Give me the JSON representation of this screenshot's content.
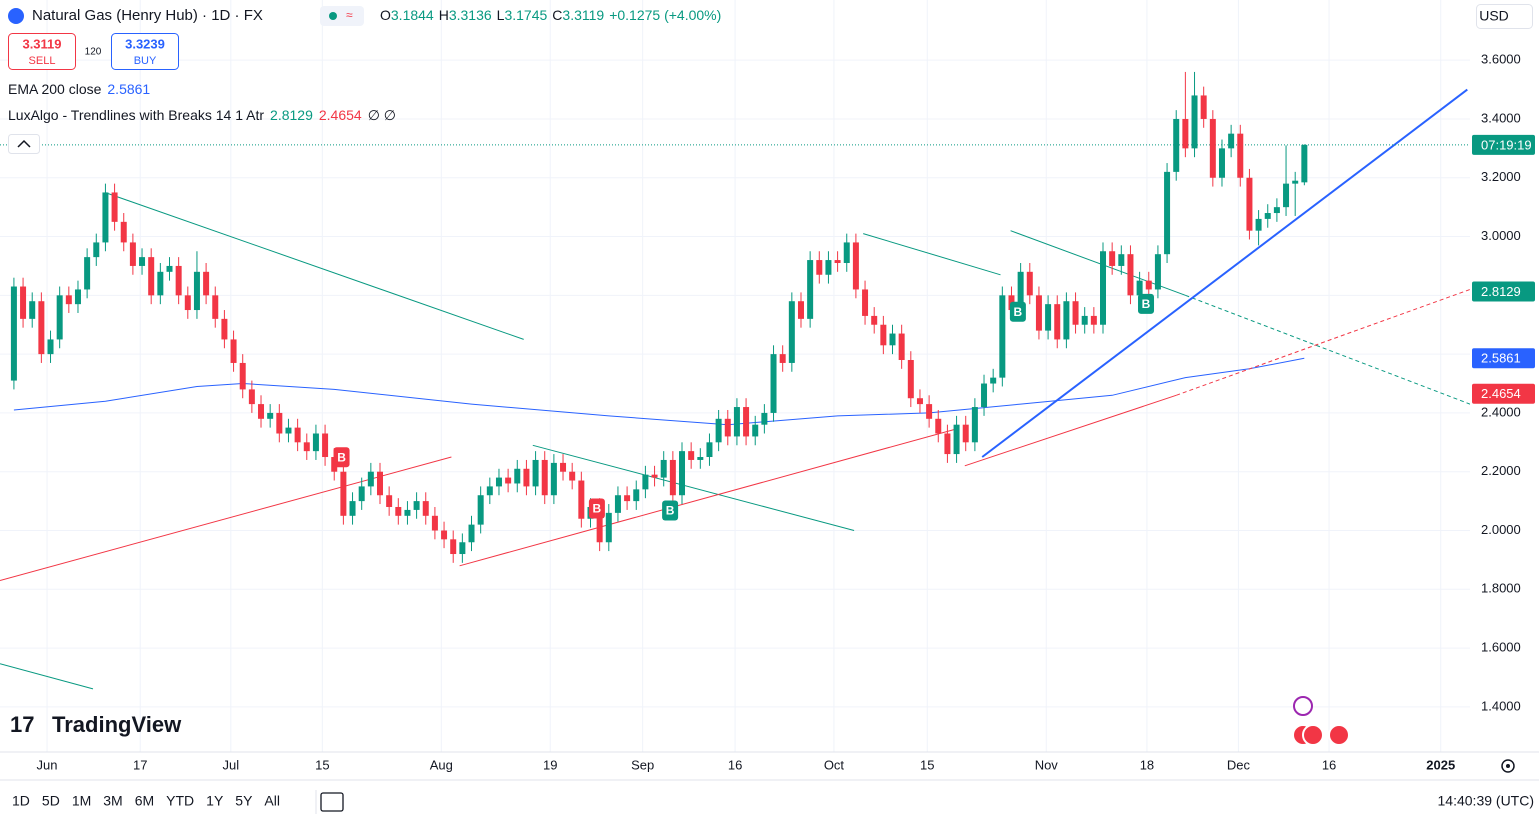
{
  "header": {
    "title": "Natural Gas (Henry Hub) · 1D · FX",
    "ohlc_labels": [
      "O",
      "H",
      "L",
      "C"
    ],
    "change": "+0.1275 (+4.00%)",
    "sell_label": "SELL",
    "buy_label": "BUY",
    "buy": 3.3239,
    "spread": 120,
    "currency": "USD"
  },
  "chart_data": {
    "type": "candlestick",
    "up_color": "#089981",
    "down_color": "#f23645",
    "xlim": [
      -1.52,
      159.1
    ],
    "ylim": [
      1.2465,
      3.8047
    ],
    "grid": true,
    "yticks": [
      {
        "value": 1.4,
        "label": "1.4000"
      },
      {
        "value": 1.6,
        "label": "1.6000"
      },
      {
        "value": 1.8,
        "label": "1.8000"
      },
      {
        "value": 2.0,
        "label": "2.0000"
      },
      {
        "value": 2.2,
        "label": "2.2000"
      },
      {
        "value": 2.4,
        "label": "2.4000"
      },
      {
        "value": 2.6,
        "label": "2.6000"
      },
      {
        "value": 2.8,
        "label": "2.8000"
      },
      {
        "value": 3.0,
        "label": "3.0000"
      },
      {
        "value": 3.2,
        "label": "3.2000"
      },
      {
        "value": 3.4,
        "label": "3.4000"
      },
      {
        "value": 3.6,
        "label": "3.6000"
      }
    ],
    "xticks": [
      {
        "value": 3.62,
        "label": "Jun"
      },
      {
        "value": 13.8,
        "label": "17"
      },
      {
        "value": 23.7,
        "label": "Jul"
      },
      {
        "value": 33.7,
        "label": "15"
      },
      {
        "value": 46.7,
        "label": "Aug"
      },
      {
        "value": 58.6,
        "label": "19"
      },
      {
        "value": 68.7,
        "label": "Sep"
      },
      {
        "value": 78.8,
        "label": "16"
      },
      {
        "value": 89.6,
        "label": "Oct"
      },
      {
        "value": 99.8,
        "label": "15"
      },
      {
        "value": 112.8,
        "label": "Nov"
      },
      {
        "value": 123.8,
        "label": "18"
      },
      {
        "value": 133.8,
        "label": "Dec"
      },
      {
        "value": 143.7,
        "label": "16"
      },
      {
        "value": 155.9,
        "label": "2025"
      }
    ],
    "open": [
      2.51,
      2.83,
      2.72,
      2.78,
      2.6,
      2.65,
      2.8,
      2.77,
      2.82,
      2.93,
      2.98,
      3.15,
      3.05,
      2.98,
      2.9,
      2.93,
      2.8,
      2.88,
      2.9,
      2.8,
      2.75,
      2.88,
      2.8,
      2.72,
      2.65,
      2.57,
      2.48,
      2.43,
      2.38,
      2.4,
      2.33,
      2.35,
      2.3,
      2.27,
      2.33,
      2.25,
      2.2,
      2.05,
      2.1,
      2.15,
      2.2,
      2.12,
      2.08,
      2.05,
      2.07,
      2.1,
      2.05,
      2.0,
      1.97,
      1.92,
      1.96,
      2.02,
      2.12,
      2.15,
      2.18,
      2.16,
      2.21,
      2.15,
      2.24,
      2.12,
      2.23,
      2.2,
      2.17,
      2.04,
      2.08,
      1.96,
      2.06,
      2.12,
      2.1,
      2.14,
      2.19,
      2.18,
      2.24,
      2.12,
      2.27,
      2.24,
      2.25,
      2.3,
      2.38,
      2.32,
      2.42,
      2.32,
      2.36,
      2.4,
      2.6,
      2.57,
      2.78,
      2.72,
      2.92,
      2.87,
      2.92,
      2.91,
      2.98,
      2.82,
      2.73,
      2.7,
      2.63,
      2.67,
      2.58,
      2.45,
      2.43,
      2.38,
      2.33,
      2.26,
      2.36,
      2.3,
      2.42,
      2.5,
      2.52,
      2.8,
      2.75,
      2.88,
      2.8,
      2.68,
      2.77,
      2.65,
      2.78,
      2.7,
      2.73,
      2.7,
      2.95,
      2.9,
      2.94,
      2.8,
      2.85,
      2.82,
      2.94,
      3.22,
      3.4,
      3.3,
      3.48,
      3.4,
      3.2,
      3.3,
      3.35,
      3.2,
      3.02,
      3.06,
      3.08,
      3.1,
      3.18,
      3.1844
    ],
    "high": [
      2.86,
      2.86,
      2.81,
      2.81,
      2.68,
      2.83,
      2.83,
      2.85,
      2.96,
      3.01,
      3.18,
      3.18,
      3.08,
      3.01,
      2.96,
      2.96,
      2.91,
      2.93,
      2.93,
      2.83,
      2.95,
      2.91,
      2.83,
      2.75,
      2.68,
      2.6,
      2.51,
      2.46,
      2.43,
      2.43,
      2.38,
      2.38,
      2.33,
      2.36,
      2.36,
      2.28,
      2.23,
      2.13,
      2.18,
      2.23,
      2.23,
      2.15,
      2.11,
      2.1,
      2.13,
      2.13,
      2.08,
      2.03,
      2.0,
      1.99,
      2.05,
      2.15,
      2.18,
      2.21,
      2.21,
      2.24,
      2.24,
      2.27,
      2.27,
      2.26,
      2.26,
      2.23,
      2.2,
      2.11,
      2.11,
      2.09,
      2.15,
      2.15,
      2.17,
      2.22,
      2.22,
      2.27,
      2.27,
      2.3,
      2.3,
      2.28,
      2.33,
      2.41,
      2.41,
      2.45,
      2.45,
      2.39,
      2.43,
      2.63,
      2.63,
      2.81,
      2.81,
      2.95,
      2.95,
      2.95,
      2.95,
      3.01,
      3.01,
      2.85,
      2.76,
      2.73,
      2.7,
      2.7,
      2.61,
      2.48,
      2.46,
      2.41,
      2.36,
      2.39,
      2.39,
      2.45,
      2.53,
      2.55,
      2.83,
      2.83,
      2.91,
      2.91,
      2.83,
      2.8,
      2.8,
      2.81,
      2.81,
      2.76,
      2.76,
      2.98,
      2.98,
      2.97,
      2.97,
      2.88,
      2.88,
      2.97,
      3.25,
      3.43,
      3.56,
      3.56,
      3.51,
      3.43,
      3.33,
      3.38,
      3.38,
      3.23,
      3.09,
      3.11,
      3.13,
      3.31,
      3.22,
      3.3136
    ],
    "low": [
      2.48,
      2.69,
      2.69,
      2.57,
      2.57,
      2.62,
      2.74,
      2.74,
      2.79,
      2.9,
      2.95,
      3.02,
      2.95,
      2.87,
      2.87,
      2.77,
      2.77,
      2.85,
      2.77,
      2.72,
      2.72,
      2.77,
      2.69,
      2.62,
      2.54,
      2.45,
      2.4,
      2.35,
      2.35,
      2.3,
      2.3,
      2.27,
      2.24,
      2.24,
      2.22,
      2.17,
      2.02,
      2.02,
      2.07,
      2.12,
      2.09,
      2.05,
      2.02,
      2.02,
      2.04,
      2.02,
      1.97,
      1.94,
      1.89,
      1.89,
      1.93,
      1.99,
      2.09,
      2.12,
      2.13,
      2.13,
      2.12,
      2.12,
      2.09,
      2.09,
      2.17,
      2.14,
      2.01,
      2.01,
      1.93,
      1.93,
      2.03,
      2.07,
      2.07,
      2.11,
      2.15,
      2.15,
      2.09,
      2.09,
      2.21,
      2.21,
      2.22,
      2.27,
      2.29,
      2.29,
      2.29,
      2.29,
      2.33,
      2.37,
      2.54,
      2.54,
      2.69,
      2.69,
      2.84,
      2.84,
      2.88,
      2.88,
      2.79,
      2.7,
      2.67,
      2.6,
      2.6,
      2.55,
      2.42,
      2.4,
      2.35,
      2.3,
      2.23,
      2.23,
      2.27,
      2.27,
      2.39,
      2.47,
      2.49,
      2.72,
      2.72,
      2.77,
      2.65,
      2.65,
      2.62,
      2.62,
      2.67,
      2.67,
      2.67,
      2.67,
      2.87,
      2.87,
      2.77,
      2.77,
      2.79,
      2.79,
      2.91,
      3.19,
      3.27,
      3.27,
      3.37,
      3.17,
      3.17,
      3.27,
      3.17,
      2.99,
      2.97,
      3.03,
      3.05,
      3.07,
      3.07,
      3.1745
    ],
    "close": [
      2.83,
      2.72,
      2.78,
      2.6,
      2.65,
      2.8,
      2.77,
      2.82,
      2.93,
      2.98,
      3.15,
      3.05,
      2.98,
      2.9,
      2.93,
      2.8,
      2.88,
      2.9,
      2.8,
      2.75,
      2.88,
      2.8,
      2.72,
      2.65,
      2.57,
      2.48,
      2.43,
      2.38,
      2.4,
      2.33,
      2.35,
      2.3,
      2.27,
      2.33,
      2.25,
      2.2,
      2.05,
      2.1,
      2.15,
      2.2,
      2.12,
      2.08,
      2.05,
      2.07,
      2.1,
      2.05,
      2.0,
      1.97,
      1.92,
      1.96,
      2.02,
      2.12,
      2.15,
      2.18,
      2.16,
      2.21,
      2.15,
      2.24,
      2.12,
      2.23,
      2.2,
      2.17,
      2.04,
      2.08,
      1.96,
      2.06,
      2.12,
      2.1,
      2.14,
      2.19,
      2.18,
      2.24,
      2.12,
      2.27,
      2.24,
      2.25,
      2.3,
      2.38,
      2.32,
      2.42,
      2.32,
      2.36,
      2.4,
      2.6,
      2.57,
      2.78,
      2.72,
      2.92,
      2.87,
      2.92,
      2.91,
      2.98,
      2.82,
      2.73,
      2.7,
      2.63,
      2.67,
      2.58,
      2.45,
      2.43,
      2.38,
      2.33,
      2.26,
      2.36,
      2.3,
      2.42,
      2.5,
      2.52,
      2.8,
      2.75,
      2.88,
      2.8,
      2.68,
      2.77,
      2.65,
      2.78,
      2.7,
      2.73,
      2.7,
      2.95,
      2.9,
      2.94,
      2.8,
      2.85,
      2.82,
      2.94,
      3.22,
      3.4,
      3.3,
      3.48,
      3.4,
      3.2,
      3.3,
      3.35,
      3.2,
      3.02,
      3.06,
      3.08,
      3.1,
      3.18,
      3.19,
      3.3119
    ],
    "countdown": "07:19:19",
    "ema": {
      "name": "EMA 200 close",
      "color": "#2962ff",
      "x": [
        0,
        10,
        20,
        25,
        35,
        50,
        65,
        78,
        90,
        100,
        110,
        120,
        128,
        135,
        141
      ],
      "values": [
        2.41,
        2.44,
        2.49,
        2.5,
        2.48,
        2.43,
        2.39,
        2.36,
        2.39,
        2.4,
        2.43,
        2.46,
        2.52,
        2.55,
        2.5861
      ]
    },
    "luxalgo": {
      "name": "LuxAlgo - Trendlines with Breaks 14 1 Atr",
      "upper": 2.8129,
      "lower": 2.4654,
      "upper_color": "#089981",
      "lower_color": "#f23645",
      "empty": "∅ ∅"
    },
    "trendlines": [
      {
        "x": [
          9.96,
          55.7
        ],
        "values": [
          3.15,
          2.65
        ],
        "color": "#089981",
        "dashed": false,
        "width": 1
      },
      {
        "x": [
          -1.52,
          8.64
        ],
        "values": [
          1.547,
          1.461
        ],
        "color": "#089981",
        "dashed": false,
        "width": 1
      },
      {
        "x": [
          56.7,
          91.8
        ],
        "values": [
          2.29,
          2.0
        ],
        "color": "#089981",
        "dashed": false,
        "width": 1
      },
      {
        "x": [
          92.8,
          107.8
        ],
        "values": [
          3.01,
          2.87
        ],
        "color": "#089981",
        "dashed": false,
        "width": 1
      },
      {
        "x": [
          108.9,
          128.0
        ],
        "values": [
          3.02,
          2.8
        ],
        "color": "#089981",
        "dashed": false,
        "width": 1
      },
      {
        "x": [
          128.0,
          159.1
        ],
        "values": [
          2.8,
          2.43
        ],
        "color": "#089981",
        "dashed": true,
        "width": 1
      },
      {
        "x": [
          -1.52,
          47.8
        ],
        "values": [
          1.83,
          2.25
        ],
        "color": "#f23645",
        "dashed": false,
        "width": 1
      },
      {
        "x": [
          48.7,
          102.9
        ],
        "values": [
          1.88,
          2.345
        ],
        "color": "#f23645",
        "dashed": false,
        "width": 1
      },
      {
        "x": [
          103.9,
          127.0
        ],
        "values": [
          2.22,
          2.46
        ],
        "color": "#f23645",
        "dashed": false,
        "width": 1
      },
      {
        "x": [
          127.0,
          159.1
        ],
        "values": [
          2.46,
          2.82
        ],
        "color": "#f23645",
        "dashed": true,
        "width": 1
      },
      {
        "x": [
          105.8,
          158.8
        ],
        "values": [
          2.25,
          3.5
        ],
        "color": "#2962ff",
        "dashed": false,
        "width": 2
      }
    ],
    "breaks": [
      {
        "label": "B",
        "x": 35.8,
        "price": 2.249,
        "color": "#f23645"
      },
      {
        "label": "B",
        "x": 63.7,
        "price": 2.075,
        "color": "#f23645"
      },
      {
        "label": "B",
        "x": 71.7,
        "price": 2.068,
        "color": "#089981"
      },
      {
        "label": "B",
        "x": 109.7,
        "price": 2.744,
        "color": "#089981"
      },
      {
        "label": "B",
        "x": 123.7,
        "price": 2.771,
        "color": "#089981"
      }
    ]
  },
  "toolbar": {
    "ranges": [
      "1D",
      "5D",
      "1M",
      "3M",
      "6M",
      "YTD",
      "1Y",
      "5Y",
      "All"
    ],
    "clock": "14:40:39 (UTC)",
    "brand": "TradingView"
  }
}
